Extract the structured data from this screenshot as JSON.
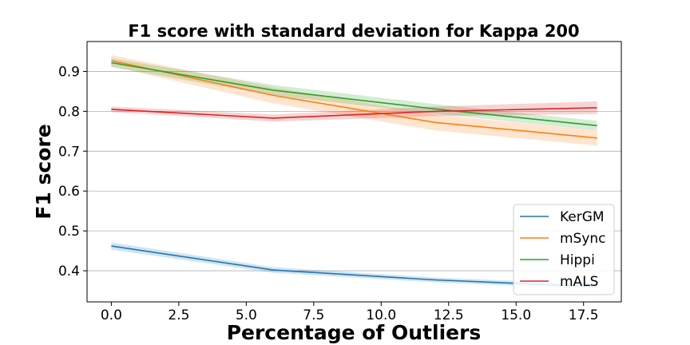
{
  "chart_data": {
    "type": "line",
    "title": "F1 score with standard deviation for Kappa 200",
    "xlabel": "Percentage of Outliers",
    "ylabel": "F1 score",
    "xlim": [
      -0.9,
      18.9
    ],
    "ylim": [
      0.322,
      0.975
    ],
    "xticks": [
      0.0,
      2.5,
      5.0,
      7.5,
      10.0,
      12.5,
      15.0,
      17.5
    ],
    "xtick_labels": [
      "0.0",
      "2.5",
      "5.0",
      "7.5",
      "10.0",
      "12.5",
      "15.0",
      "17.5"
    ],
    "yticks": [
      0.4,
      0.5,
      0.6,
      0.7,
      0.8,
      0.9
    ],
    "ytick_labels": [
      "0.4",
      "0.5",
      "0.6",
      "0.7",
      "0.8",
      "0.9"
    ],
    "grid": "horizontal",
    "legend_position": "lower-right",
    "x": [
      0,
      6,
      12,
      18
    ],
    "series": [
      {
        "name": "KerGM",
        "color": "#1f77b4",
        "values": [
          0.462,
          0.402,
          0.377,
          0.36
        ],
        "std": [
          0.009,
          0.007,
          0.006,
          0.006
        ]
      },
      {
        "name": "mSync",
        "color": "#ff7f0e",
        "values": [
          0.927,
          0.84,
          0.772,
          0.733
        ],
        "std": [
          0.014,
          0.02,
          0.02,
          0.019
        ]
      },
      {
        "name": "Hippi",
        "color": "#2ca02c",
        "values": [
          0.922,
          0.853,
          0.806,
          0.764
        ],
        "std": [
          0.011,
          0.013,
          0.012,
          0.012
        ]
      },
      {
        "name": "mALS",
        "color": "#d62728",
        "values": [
          0.805,
          0.783,
          0.8,
          0.809
        ],
        "std": [
          0.007,
          0.009,
          0.012,
          0.016
        ]
      }
    ]
  }
}
